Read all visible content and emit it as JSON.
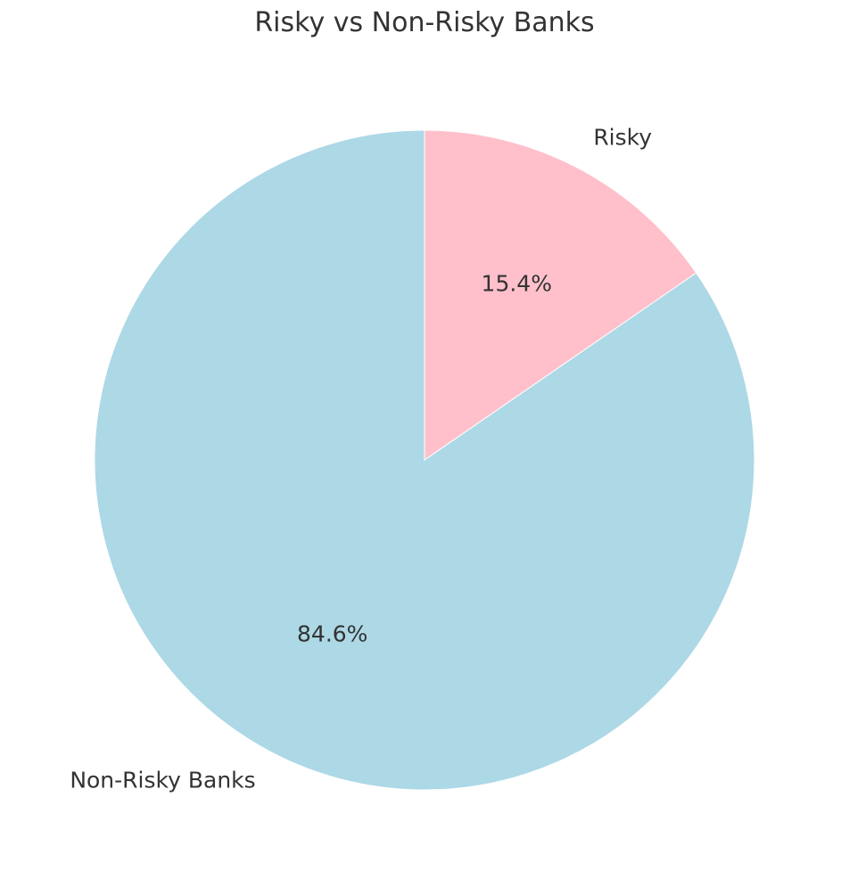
{
  "chart_data": {
    "type": "pie",
    "title": "Risky vs Non-Risky Banks",
    "slices": [
      {
        "label": "Risky",
        "value": 15.4,
        "pct_label": "15.4%",
        "color": "#FFC0CB"
      },
      {
        "label": "Non-Risky Banks",
        "value": 84.6,
        "pct_label": "84.6%",
        "color": "#ADD8E6"
      }
    ],
    "start_angle_deg": 90,
    "direction": "clockwise",
    "legend": "none"
  }
}
